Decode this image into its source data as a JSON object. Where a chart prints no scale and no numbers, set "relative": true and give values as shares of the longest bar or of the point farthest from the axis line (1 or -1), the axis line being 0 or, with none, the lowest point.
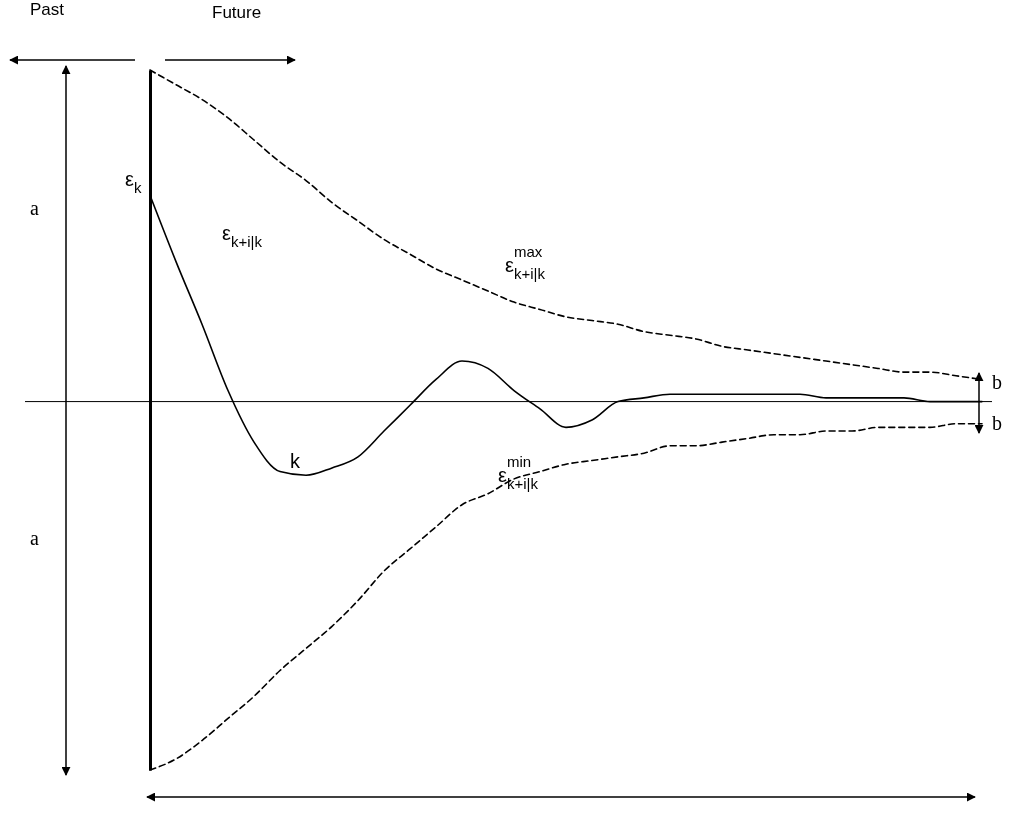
{
  "chart_data": {
    "type": "line",
    "relative": true,
    "grid": false,
    "categories": [
      null,
      null,
      null,
      null,
      null,
      null,
      null,
      null,
      null,
      null,
      null,
      null,
      null,
      null,
      null,
      null,
      null,
      null,
      null,
      null,
      null,
      null,
      null,
      null,
      null,
      null,
      null,
      null,
      null,
      null,
      null,
      null,
      null
    ],
    "series": [
      {
        "name": "ε$^{max}$$_{k+i|k}$",
        "color": "#000000",
        "line_style": "dashed",
        "values": [
          0.9,
          0.86,
          0.82,
          0.77,
          0.71,
          0.65,
          0.6,
          0.54,
          0.49,
          0.44,
          0.4,
          0.36,
          0.33,
          0.3,
          0.27,
          0.25,
          0.23,
          0.22,
          0.21,
          0.19,
          0.18,
          0.17,
          0.15,
          0.14,
          0.13,
          0.12,
          0.11,
          0.1,
          0.09,
          0.08,
          0.08,
          0.07,
          0.06
        ]
      },
      {
        "name": "ε$_{k+i|k}$",
        "color": "#000000",
        "line_style": "solid",
        "values": [
          0.56,
          0.38,
          0.21,
          0.03,
          -0.11,
          -0.19,
          -0.2,
          -0.18,
          -0.15,
          -0.08,
          -0.01,
          0.06,
          0.11,
          0.09,
          0.03,
          -0.02,
          -0.07,
          -0.05,
          0.0,
          0.01,
          0.02,
          0.02,
          0.02,
          0.02,
          0.02,
          0.02,
          0.01,
          0.01,
          0.01,
          0.01,
          0.0,
          0.0,
          0.0
        ]
      },
      {
        "name": "ε$^{min}$$_{k+i|k}$",
        "color": "#000000",
        "line_style": "dashed",
        "values": [
          -1.0,
          -0.97,
          -0.92,
          -0.86,
          -0.8,
          -0.73,
          -0.67,
          -0.61,
          -0.54,
          -0.46,
          -0.4,
          -0.34,
          -0.28,
          -0.25,
          -0.21,
          -0.19,
          -0.17,
          -0.16,
          -0.15,
          -0.14,
          -0.12,
          -0.12,
          -0.11,
          -0.1,
          -0.09,
          -0.09,
          -0.08,
          -0.08,
          -0.07,
          -0.07,
          -0.07,
          -0.06,
          -0.06
        ]
      }
    ],
    "annotations": [
      "Past",
      "Future",
      "a",
      "a",
      "b",
      "b",
      "k",
      "ε$_{k}$"
    ]
  }
}
